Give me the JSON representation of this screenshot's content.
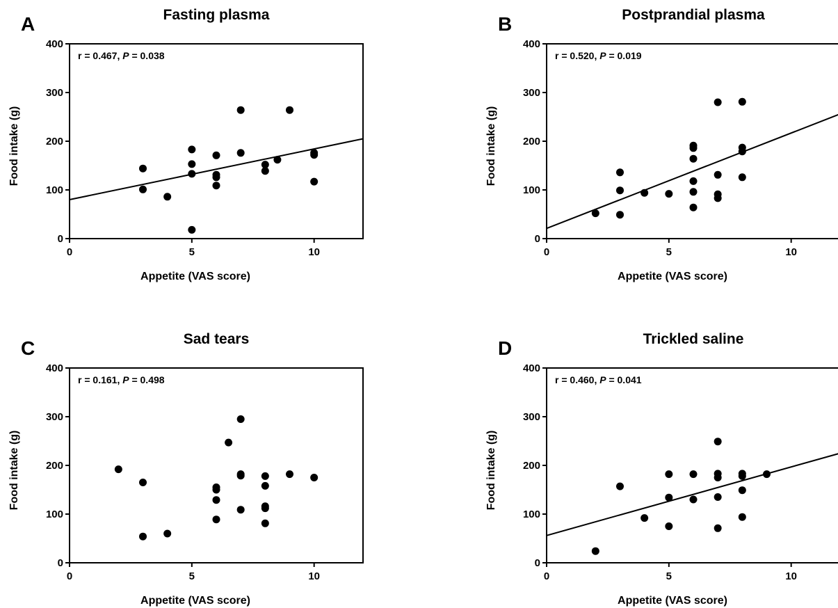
{
  "chart_data": [
    {
      "type": "scatter",
      "panel_label": "A",
      "title": "Fasting plasma",
      "xlabel": "Appetite (VAS score)",
      "ylabel": "Food intake (g)",
      "xlim": [
        0,
        12
      ],
      "ylim": [
        0,
        400
      ],
      "xticks": [
        "0",
        "5",
        "10"
      ],
      "yticks": [
        "0",
        "100",
        "200",
        "300",
        "400"
      ],
      "stat": {
        "r_text": "r = 0.467, ",
        "p_symbol": "P",
        "p_text": " = 0.038"
      },
      "regression": {
        "x": [
          0,
          12
        ],
        "y": [
          80,
          205
        ]
      },
      "points": [
        {
          "x": 3,
          "y": 144
        },
        {
          "x": 3,
          "y": 101
        },
        {
          "x": 4,
          "y": 86
        },
        {
          "x": 5,
          "y": 183
        },
        {
          "x": 5,
          "y": 153
        },
        {
          "x": 5,
          "y": 133
        },
        {
          "x": 5,
          "y": 18
        },
        {
          "x": 6,
          "y": 171
        },
        {
          "x": 6,
          "y": 131
        },
        {
          "x": 6,
          "y": 126
        },
        {
          "x": 6,
          "y": 109
        },
        {
          "x": 7,
          "y": 264
        },
        {
          "x": 7,
          "y": 176
        },
        {
          "x": 8,
          "y": 152
        },
        {
          "x": 8,
          "y": 139
        },
        {
          "x": 8.5,
          "y": 162
        },
        {
          "x": 9,
          "y": 264
        },
        {
          "x": 10,
          "y": 176
        },
        {
          "x": 10,
          "y": 172
        },
        {
          "x": 10,
          "y": 117
        }
      ]
    },
    {
      "type": "scatter",
      "panel_label": "B",
      "title": "Postprandial plasma",
      "xlabel": "Appetite (VAS score)",
      "ylabel": "Food intake (g)",
      "xlim": [
        0,
        12
      ],
      "ylim": [
        0,
        400
      ],
      "xticks": [
        "0",
        "5",
        "10"
      ],
      "yticks": [
        "0",
        "100",
        "200",
        "300",
        "400"
      ],
      "stat": {
        "r_text": "r = 0.520, ",
        "p_symbol": "P",
        "p_text": " = 0.019"
      },
      "regression": {
        "x": [
          0,
          12
        ],
        "y": [
          21,
          256
        ]
      },
      "points": [
        {
          "x": 2,
          "y": 52
        },
        {
          "x": 3,
          "y": 136
        },
        {
          "x": 3,
          "y": 99
        },
        {
          "x": 3,
          "y": 49
        },
        {
          "x": 4,
          "y": 94
        },
        {
          "x": 5,
          "y": 92
        },
        {
          "x": 6,
          "y": 191
        },
        {
          "x": 6,
          "y": 186
        },
        {
          "x": 6,
          "y": 164
        },
        {
          "x": 6,
          "y": 118
        },
        {
          "x": 6,
          "y": 96
        },
        {
          "x": 6,
          "y": 64
        },
        {
          "x": 7,
          "y": 280
        },
        {
          "x": 7,
          "y": 131
        },
        {
          "x": 7,
          "y": 91
        },
        {
          "x": 7,
          "y": 83
        },
        {
          "x": 8,
          "y": 281
        },
        {
          "x": 8,
          "y": 187
        },
        {
          "x": 8,
          "y": 179
        },
        {
          "x": 8,
          "y": 126
        }
      ]
    },
    {
      "type": "scatter",
      "panel_label": "C",
      "title": "Sad tears",
      "xlabel": "Appetite (VAS score)",
      "ylabel": "Food intake (g)",
      "xlim": [
        0,
        12
      ],
      "ylim": [
        0,
        400
      ],
      "xticks": [
        "0",
        "5",
        "10"
      ],
      "yticks": [
        "0",
        "100",
        "200",
        "300",
        "400"
      ],
      "stat": {
        "r_text": "r = 0.161, ",
        "p_symbol": "P",
        "p_text": " = 0.498"
      },
      "regression": null,
      "points": [
        {
          "x": 2,
          "y": 192
        },
        {
          "x": 3,
          "y": 165
        },
        {
          "x": 3,
          "y": 54
        },
        {
          "x": 4,
          "y": 60
        },
        {
          "x": 6,
          "y": 155
        },
        {
          "x": 6,
          "y": 150
        },
        {
          "x": 6,
          "y": 129
        },
        {
          "x": 6,
          "y": 89
        },
        {
          "x": 6.5,
          "y": 247
        },
        {
          "x": 7,
          "y": 295
        },
        {
          "x": 7,
          "y": 182
        },
        {
          "x": 7,
          "y": 179
        },
        {
          "x": 7,
          "y": 109
        },
        {
          "x": 8,
          "y": 178
        },
        {
          "x": 8,
          "y": 158
        },
        {
          "x": 8,
          "y": 116
        },
        {
          "x": 8,
          "y": 112
        },
        {
          "x": 8,
          "y": 81
        },
        {
          "x": 9,
          "y": 182
        },
        {
          "x": 10,
          "y": 175
        }
      ]
    },
    {
      "type": "scatter",
      "panel_label": "D",
      "title": "Trickled saline",
      "xlabel": "Appetite (VAS score)",
      "ylabel": "Food intake (g)",
      "xlim": [
        0,
        12
      ],
      "ylim": [
        0,
        400
      ],
      "xticks": [
        "0",
        "5",
        "10"
      ],
      "yticks": [
        "0",
        "100",
        "200",
        "300",
        "400"
      ],
      "stat": {
        "r_text": "r = 0.460, ",
        "p_symbol": "P",
        "p_text": " = 0.041"
      },
      "regression": {
        "x": [
          0,
          12
        ],
        "y": [
          56,
          225
        ]
      },
      "points": [
        {
          "x": 2,
          "y": 24
        },
        {
          "x": 3,
          "y": 157
        },
        {
          "x": 4,
          "y": 92
        },
        {
          "x": 5,
          "y": 182
        },
        {
          "x": 5,
          "y": 134
        },
        {
          "x": 5,
          "y": 75
        },
        {
          "x": 6,
          "y": 182
        },
        {
          "x": 6,
          "y": 130
        },
        {
          "x": 7,
          "y": 249
        },
        {
          "x": 7,
          "y": 183
        },
        {
          "x": 7,
          "y": 175
        },
        {
          "x": 7,
          "y": 135
        },
        {
          "x": 7,
          "y": 71
        },
        {
          "x": 8,
          "y": 183
        },
        {
          "x": 8,
          "y": 178
        },
        {
          "x": 8,
          "y": 149
        },
        {
          "x": 8,
          "y": 94
        },
        {
          "x": 9,
          "y": 182
        }
      ]
    }
  ]
}
